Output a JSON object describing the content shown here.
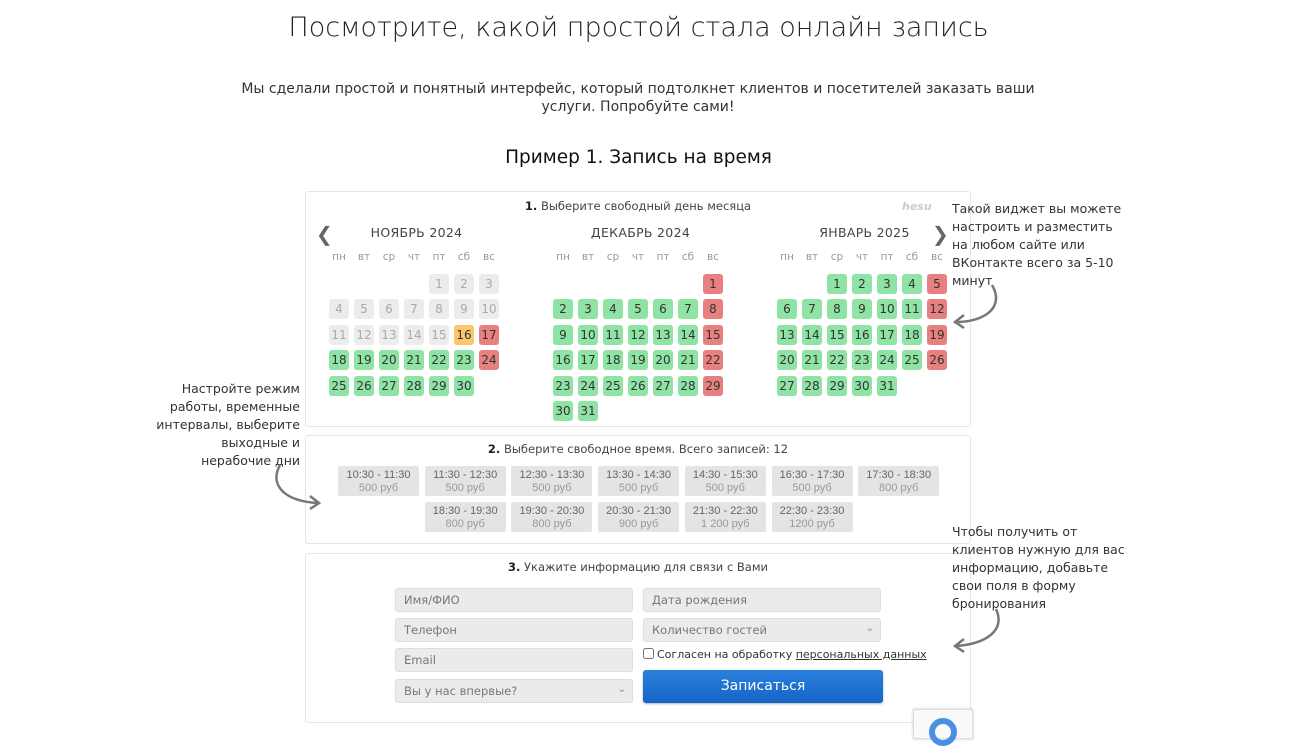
{
  "title": "Посмотрите, какой простой стала онлайн запись",
  "intro": "Мы сделали простой и понятный интерфейс, который подтолкнет клиентов и посетителей заказать ваши услуги. Попробуйте сами!",
  "example_title": "Пример 1. Запись на время",
  "colors": {
    "free": "#8ee3a5",
    "weekend": "#e88080",
    "selected": "#fbc66c",
    "past": "#ececec",
    "button": "#1a6fd1"
  },
  "step1": {
    "num": "1.",
    "label": "Выберите свободный день месяца",
    "logo": "hesu"
  },
  "weekdays": [
    "пн",
    "вт",
    "ср",
    "чт",
    "пт",
    "сб",
    "вс"
  ],
  "months": [
    {
      "name": "НОЯБРЬ 2024",
      "start_weekday": 5,
      "days": 30,
      "past": [
        1,
        2,
        3,
        4,
        5,
        6,
        7,
        8,
        9,
        10,
        11,
        12,
        13,
        14,
        15
      ],
      "selected": [
        16
      ],
      "weekend": [
        17,
        24
      ]
    },
    {
      "name": "ДЕКАБРЬ 2024",
      "start_weekday": 7,
      "days": 31,
      "past": [],
      "selected": [],
      "weekend": [
        1,
        8,
        15,
        22,
        29
      ]
    },
    {
      "name": "ЯНВАРЬ 2025",
      "start_weekday": 3,
      "days": 31,
      "past": [],
      "selected": [],
      "weekend": [
        5,
        12,
        19,
        26
      ]
    }
  ],
  "step2": {
    "num": "2.",
    "label": "Выберите свободное время. Всего записей: 12"
  },
  "slots": [
    {
      "time": "10:30 - 11:30",
      "price": "500 руб"
    },
    {
      "time": "11:30 - 12:30",
      "price": "500 руб"
    },
    {
      "time": "12:30 - 13:30",
      "price": "500 руб"
    },
    {
      "time": "13:30 - 14:30",
      "price": "500 руб"
    },
    {
      "time": "14:30 - 15:30",
      "price": "500 руб"
    },
    {
      "time": "16:30 - 17:30",
      "price": "500 руб"
    },
    {
      "time": "17:30 - 18:30",
      "price": "800 руб"
    },
    {
      "time": "18:30 - 19:30",
      "price": "800 руб"
    },
    {
      "time": "19:30 - 20:30",
      "price": "800 руб"
    },
    {
      "time": "20:30 - 21:30",
      "price": "900 руб"
    },
    {
      "time": "21:30 - 22:30",
      "price": "1 200 руб"
    },
    {
      "time": "22:30 - 23:30",
      "price": "1200 руб"
    }
  ],
  "step3": {
    "num": "3.",
    "label": "Укажите информацию для связи с Вами"
  },
  "form": {
    "name_placeholder": "Имя/ФИО",
    "phone_placeholder": "Телефон",
    "email_placeholder": "Email",
    "first_time_select": "Вы у нас впервые?",
    "birth_placeholder": "Дата рождения",
    "guests_select": "Количество гостей",
    "consent_text": "Согласен на обработку ",
    "consent_link": "персональных данных",
    "submit": "Записаться"
  },
  "notes": {
    "right_top": "Такой виджет вы можете настроить и разместить на любом сайте или ВКонтакте всего за 5-10 минут",
    "left": "Настройте режим работы, временные интервалы, выберите выходные и нерабочие дни",
    "right_bottom": "Чтобы получить от клиентов нужную для вас информацию, добавьте свои поля в форму бронирования"
  }
}
